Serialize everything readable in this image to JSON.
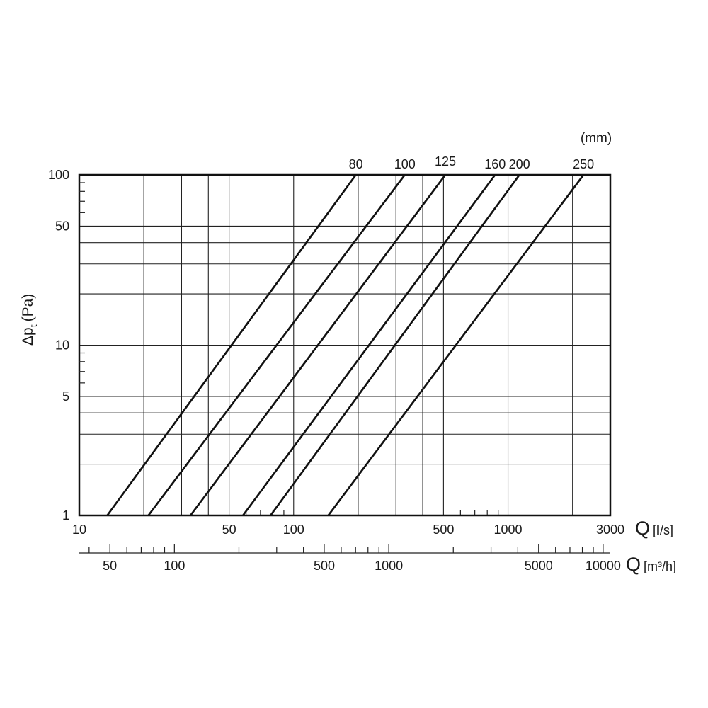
{
  "chart_data": {
    "type": "line",
    "x_scale": "log",
    "y_scale": "log",
    "xlim": [
      10,
      3000
    ],
    "ylim": [
      1,
      100
    ],
    "x_gridlines": [
      20,
      30,
      40,
      50,
      100,
      200,
      300,
      400,
      500,
      1000,
      2000
    ],
    "y_gridlines": [
      2,
      3,
      4,
      5,
      10,
      20,
      30,
      40,
      50
    ],
    "x_tick_labels": [
      "10",
      "50",
      "100",
      "500",
      "1000",
      "3000"
    ],
    "x_minor_ticks": [
      60,
      70,
      80,
      90,
      600,
      700,
      800,
      900
    ],
    "y_tick_labels": [
      "1",
      "5",
      "10",
      "50",
      "100"
    ],
    "y_minor_ticks": [
      6,
      7,
      8,
      9,
      60,
      70,
      80,
      90
    ],
    "ylabel": "Δp",
    "ylabel_sub": "t",
    "ylabel_unit": "(Pa)",
    "xlabel": "Q",
    "xlabel_unit_open": "[",
    "xlabel_unit_bold": "l",
    "xlabel_unit_close": "/s]",
    "x2label": "Q",
    "x2label_unit": "[m³/h]",
    "x2_tick_labels": [
      "50",
      "100",
      "500",
      "1000",
      "5000",
      "10000"
    ],
    "x2_minor_ticks": [
      40,
      60,
      70,
      80,
      90,
      200,
      300,
      400,
      600,
      700,
      800,
      900,
      2000,
      3000,
      4000,
      6000,
      7000,
      8000,
      9000
    ],
    "series_unit_label": "(mm)",
    "series": [
      {
        "name": "80",
        "points": [
          [
            13.5,
            1
          ],
          [
            195,
            100
          ]
        ]
      },
      {
        "name": "100",
        "points": [
          [
            21,
            1
          ],
          [
            330,
            100
          ]
        ]
      },
      {
        "name": "125",
        "points": [
          [
            33,
            1
          ],
          [
            510,
            100
          ]
        ]
      },
      {
        "name": "160",
        "points": [
          [
            58,
            1
          ],
          [
            870,
            100
          ]
        ]
      },
      {
        "name": "200",
        "points": [
          [
            78,
            1
          ],
          [
            1130,
            100
          ]
        ]
      },
      {
        "name": "250",
        "points": [
          [
            145,
            1
          ],
          [
            2250,
            100
          ]
        ]
      }
    ]
  }
}
